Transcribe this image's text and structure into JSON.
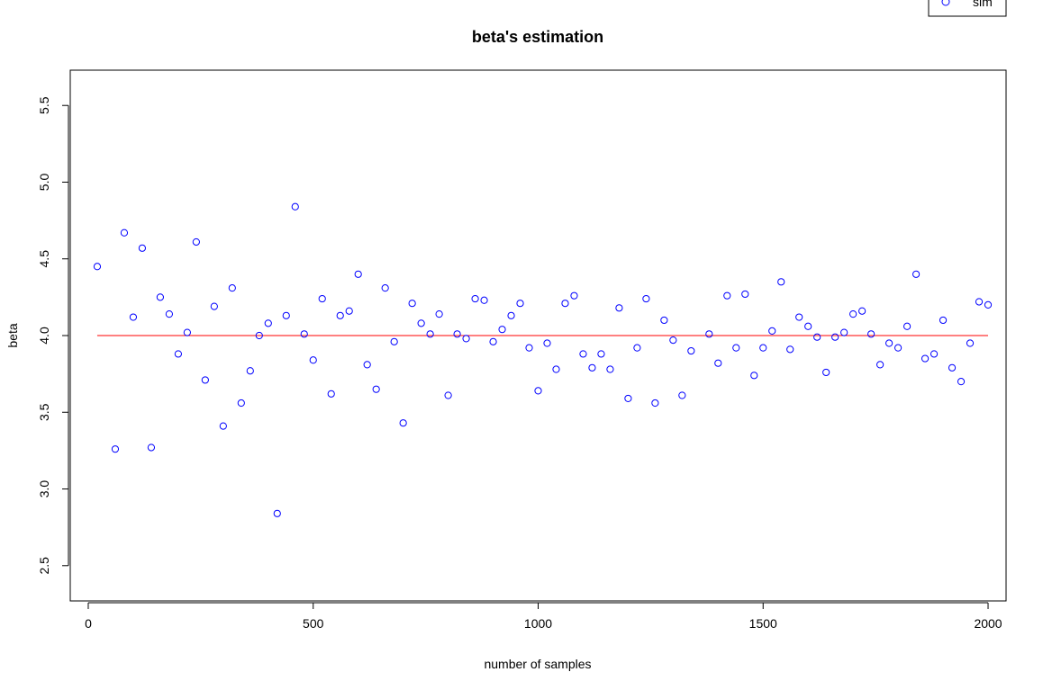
{
  "chart_data": {
    "type": "scatter",
    "title": "beta's estimation",
    "xlabel": "number of samples",
    "ylabel": "beta",
    "xlim": [
      -40,
      2040
    ],
    "ylim": [
      2.27,
      5.73
    ],
    "xticks": [
      0,
      500,
      1000,
      1500,
      2000
    ],
    "xtick_labels": [
      "0",
      "500",
      "1000",
      "1500",
      "2000"
    ],
    "yticks": [
      2.5,
      3.0,
      3.5,
      4.0,
      4.5,
      5.0,
      5.5
    ],
    "ytick_labels": [
      "2.5",
      "3.0",
      "3.5",
      "4.0",
      "4.5",
      "5.0",
      "5.5"
    ],
    "grid": false,
    "legend": {
      "placement": "top-right",
      "entries": [
        {
          "label": "sim",
          "color": "#0000ff",
          "marker": "open-circle"
        }
      ]
    },
    "series": [
      {
        "name": "sim",
        "color": "#0000ff",
        "marker": "open-circle",
        "x": [
          20,
          60,
          80,
          100,
          120,
          140,
          160,
          180,
          200,
          220,
          240,
          260,
          280,
          300,
          320,
          340,
          360,
          380,
          400,
          420,
          440,
          460,
          480,
          500,
          520,
          540,
          560,
          580,
          600,
          620,
          640,
          660,
          680,
          700,
          720,
          740,
          760,
          780,
          800,
          820,
          840,
          860,
          880,
          900,
          920,
          940,
          960,
          980,
          1000,
          1020,
          1040,
          1060,
          1080,
          1100,
          1120,
          1140,
          1160,
          1180,
          1200,
          1220,
          1240,
          1260,
          1280,
          1300,
          1320,
          1340,
          1380,
          1400,
          1420,
          1440,
          1460,
          1480,
          1500,
          1520,
          1540,
          1560,
          1580,
          1600,
          1620,
          1640,
          1660,
          1680,
          1700,
          1720,
          1740,
          1760,
          1780,
          1800,
          1820,
          1840,
          1860,
          1880,
          1900,
          1920,
          1940,
          1960,
          1980,
          2000
        ],
        "y": [
          4.45,
          3.26,
          4.67,
          4.12,
          4.57,
          3.27,
          4.25,
          4.14,
          3.88,
          4.02,
          4.61,
          3.71,
          4.19,
          3.41,
          4.31,
          3.56,
          3.77,
          4.0,
          4.08,
          2.84,
          4.13,
          4.84,
          4.01,
          3.84,
          4.24,
          3.62,
          4.13,
          4.16,
          4.4,
          3.81,
          3.65,
          4.31,
          3.96,
          3.43,
          4.21,
          4.08,
          4.01,
          4.14,
          3.61,
          4.01,
          3.98,
          4.24,
          4.23,
          3.96,
          4.04,
          4.13,
          4.21,
          3.92,
          3.64,
          3.95,
          3.78,
          4.21,
          4.26,
          3.88,
          3.79,
          3.88,
          3.78,
          4.18,
          3.59,
          3.92,
          4.24,
          3.56,
          4.1,
          3.97,
          3.61,
          3.9,
          4.01,
          3.82,
          4.26,
          3.92,
          4.27,
          3.74,
          3.92,
          4.03,
          4.35,
          3.91,
          4.12,
          4.06,
          3.99,
          3.76,
          3.99,
          4.02,
          4.14,
          4.16,
          4.01,
          3.81,
          3.95,
          3.92,
          4.06,
          4.4,
          3.85,
          3.88,
          4.1,
          3.79,
          3.7,
          3.95,
          4.22,
          4.2
        ]
      },
      {
        "name": "",
        "type": "line",
        "color": "#ff0000",
        "x": [
          20,
          2000
        ],
        "y": [
          4.0,
          4.0
        ]
      }
    ]
  }
}
